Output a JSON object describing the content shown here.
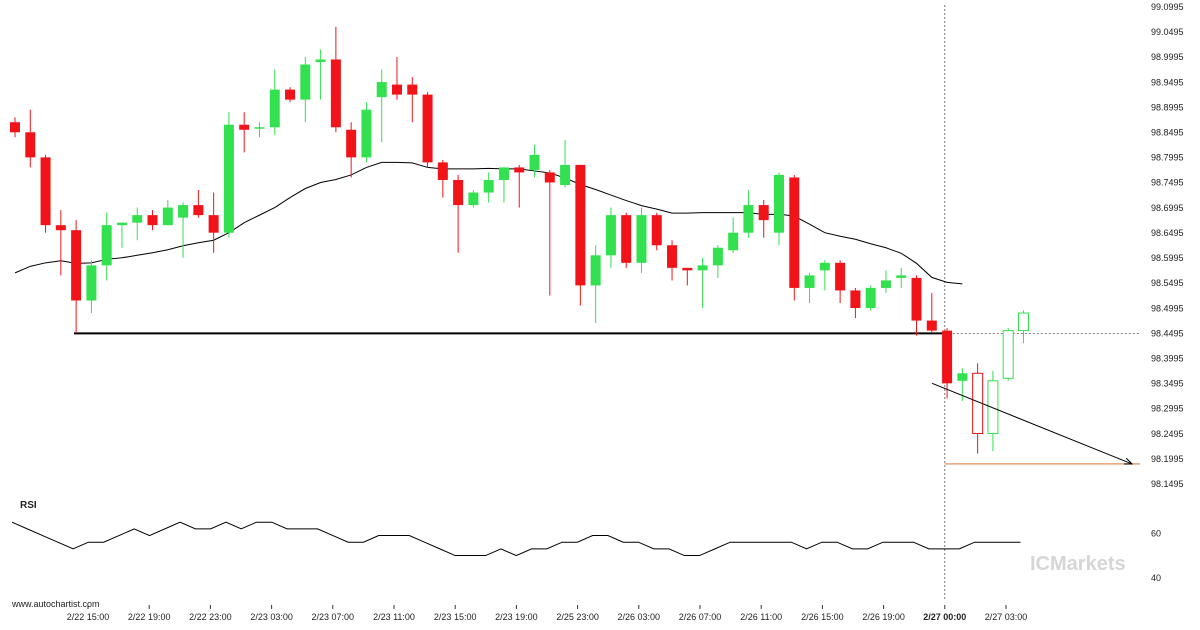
{
  "chart_data": [
    {
      "type": "candlestick",
      "title": "",
      "xlabel": "",
      "ylabel": "",
      "ylim": [
        98.1495,
        99.0995
      ],
      "y_ticks": [
        "99.0995",
        "99.0495",
        "98.9995",
        "98.9495",
        "98.8995",
        "98.8495",
        "98.7995",
        "98.7495",
        "98.6995",
        "98.6495",
        "98.5995",
        "98.5495",
        "98.4995",
        "98.4495",
        "98.3995",
        "98.3495",
        "98.2995",
        "98.2495",
        "98.1995",
        "98.1495"
      ],
      "x_ticks": [
        {
          "label": "2/22 15:00",
          "bold": false
        },
        {
          "label": "2/22 19:00",
          "bold": false
        },
        {
          "label": "2/22 23:00",
          "bold": false
        },
        {
          "label": "2/23 03:00",
          "bold": false
        },
        {
          "label": "2/23 07:00",
          "bold": false
        },
        {
          "label": "2/23 11:00",
          "bold": false
        },
        {
          "label": "2/23 15:00",
          "bold": false
        },
        {
          "label": "2/23 19:00",
          "bold": false
        },
        {
          "label": "2/25 23:00",
          "bold": false
        },
        {
          "label": "2/26 03:00",
          "bold": false
        },
        {
          "label": "2/26 07:00",
          "bold": false
        },
        {
          "label": "2/26 11:00",
          "bold": false
        },
        {
          "label": "2/26 15:00",
          "bold": false
        },
        {
          "label": "2/26 19:00",
          "bold": false
        },
        {
          "label": "2/27 00:00",
          "bold": true
        },
        {
          "label": "2/27 03:00",
          "bold": false
        }
      ],
      "support_level": 98.4495,
      "target_level": 98.1895,
      "candles": [
        {
          "o": 98.87,
          "c": 98.85,
          "h": 98.88,
          "l": 98.84
        },
        {
          "o": 98.85,
          "c": 98.8,
          "h": 98.895,
          "l": 98.78
        },
        {
          "o": 98.8,
          "c": 98.665,
          "h": 98.805,
          "l": 98.65
        },
        {
          "o": 98.665,
          "c": 98.655,
          "h": 98.695,
          "l": 98.565
        },
        {
          "o": 98.655,
          "c": 98.515,
          "h": 98.675,
          "l": 98.45
        },
        {
          "o": 98.515,
          "c": 98.585,
          "h": 98.595,
          "l": 98.49
        },
        {
          "o": 98.585,
          "c": 98.665,
          "h": 98.69,
          "l": 98.555
        },
        {
          "o": 98.665,
          "c": 98.67,
          "h": 98.67,
          "l": 98.62
        },
        {
          "o": 98.67,
          "c": 98.685,
          "h": 98.7,
          "l": 98.635
        },
        {
          "o": 98.685,
          "c": 98.665,
          "h": 98.695,
          "l": 98.655
        },
        {
          "o": 98.665,
          "c": 98.7,
          "h": 98.715,
          "l": 98.665
        },
        {
          "o": 98.68,
          "c": 98.705,
          "h": 98.71,
          "l": 98.6
        },
        {
          "o": 98.705,
          "c": 98.685,
          "h": 98.735,
          "l": 98.68
        },
        {
          "o": 98.685,
          "c": 98.65,
          "h": 98.73,
          "l": 98.61
        },
        {
          "o": 98.65,
          "c": 98.865,
          "h": 98.89,
          "l": 98.64
        },
        {
          "o": 98.865,
          "c": 98.855,
          "h": 98.89,
          "l": 98.81
        },
        {
          "o": 98.86,
          "c": 98.86,
          "h": 98.87,
          "l": 98.84
        },
        {
          "o": 98.86,
          "c": 98.935,
          "h": 98.975,
          "l": 98.845
        },
        {
          "o": 98.935,
          "c": 98.915,
          "h": 98.94,
          "l": 98.91
        },
        {
          "o": 98.915,
          "c": 98.985,
          "h": 99.0,
          "l": 98.87
        },
        {
          "o": 98.99,
          "c": 98.995,
          "h": 99.015,
          "l": 98.915
        },
        {
          "o": 98.995,
          "c": 98.86,
          "h": 99.06,
          "l": 98.85
        },
        {
          "o": 98.855,
          "c": 98.8,
          "h": 98.87,
          "l": 98.76
        },
        {
          "o": 98.8,
          "c": 98.895,
          "h": 98.91,
          "l": 98.79
        },
        {
          "o": 98.92,
          "c": 98.95,
          "h": 98.975,
          "l": 98.83
        },
        {
          "o": 98.945,
          "c": 98.925,
          "h": 99.0,
          "l": 98.915
        },
        {
          "o": 98.945,
          "c": 98.925,
          "h": 98.96,
          "l": 98.87
        },
        {
          "o": 98.925,
          "c": 98.79,
          "h": 98.93,
          "l": 98.78
        },
        {
          "o": 98.79,
          "c": 98.755,
          "h": 98.795,
          "l": 98.72
        },
        {
          "o": 98.755,
          "c": 98.705,
          "h": 98.765,
          "l": 98.61
        },
        {
          "o": 98.705,
          "c": 98.73,
          "h": 98.735,
          "l": 98.7
        },
        {
          "o": 98.73,
          "c": 98.755,
          "h": 98.77,
          "l": 98.71
        },
        {
          "o": 98.755,
          "c": 98.78,
          "h": 98.78,
          "l": 98.71
        },
        {
          "o": 98.78,
          "c": 98.77,
          "h": 98.785,
          "l": 98.7
        },
        {
          "o": 98.775,
          "c": 98.805,
          "h": 98.825,
          "l": 98.76
        },
        {
          "o": 98.77,
          "c": 98.75,
          "h": 98.775,
          "l": 98.525
        },
        {
          "o": 98.745,
          "c": 98.785,
          "h": 98.835,
          "l": 98.74
        },
        {
          "o": 98.785,
          "c": 98.545,
          "h": 98.785,
          "l": 98.505
        },
        {
          "o": 98.545,
          "c": 98.605,
          "h": 98.625,
          "l": 98.47
        },
        {
          "o": 98.605,
          "c": 98.685,
          "h": 98.7,
          "l": 98.58
        },
        {
          "o": 98.685,
          "c": 98.59,
          "h": 98.69,
          "l": 98.58
        },
        {
          "o": 98.59,
          "c": 98.685,
          "h": 98.7,
          "l": 98.57
        },
        {
          "o": 98.685,
          "c": 98.625,
          "h": 98.69,
          "l": 98.615
        },
        {
          "o": 98.625,
          "c": 98.58,
          "h": 98.635,
          "l": 98.555
        },
        {
          "o": 98.58,
          "c": 98.575,
          "h": 98.58,
          "l": 98.545
        },
        {
          "o": 98.575,
          "c": 98.585,
          "h": 98.6,
          "l": 98.5
        },
        {
          "o": 98.585,
          "c": 98.62,
          "h": 98.625,
          "l": 98.56
        },
        {
          "o": 98.615,
          "c": 98.65,
          "h": 98.68,
          "l": 98.61
        },
        {
          "o": 98.65,
          "c": 98.705,
          "h": 98.735,
          "l": 98.64
        },
        {
          "o": 98.705,
          "c": 98.675,
          "h": 98.715,
          "l": 98.64
        },
        {
          "o": 98.65,
          "c": 98.765,
          "h": 98.77,
          "l": 98.625
        },
        {
          "o": 98.76,
          "c": 98.54,
          "h": 98.765,
          "l": 98.515
        },
        {
          "o": 98.54,
          "c": 98.565,
          "h": 98.57,
          "l": 98.51
        },
        {
          "o": 98.575,
          "c": 98.59,
          "h": 98.595,
          "l": 98.535
        },
        {
          "o": 98.59,
          "c": 98.535,
          "h": 98.595,
          "l": 98.51
        },
        {
          "o": 98.535,
          "c": 98.5,
          "h": 98.54,
          "l": 98.48
        },
        {
          "o": 98.5,
          "c": 98.54,
          "h": 98.545,
          "l": 98.495
        },
        {
          "o": 98.54,
          "c": 98.555,
          "h": 98.575,
          "l": 98.53
        },
        {
          "o": 98.56,
          "c": 98.565,
          "h": 98.58,
          "l": 98.54
        },
        {
          "o": 98.56,
          "c": 98.475,
          "h": 98.565,
          "l": 98.445
        },
        {
          "o": 98.475,
          "c": 98.455,
          "h": 98.53,
          "l": 98.45
        },
        {
          "o": 98.455,
          "c": 98.35,
          "h": 98.46,
          "l": 98.32
        },
        {
          "o": 98.355,
          "c": 98.37,
          "h": 98.38,
          "l": 98.315
        },
        {
          "o": 98.37,
          "c": 98.25,
          "h": 98.39,
          "l": 98.21
        },
        {
          "o": 98.25,
          "c": 98.355,
          "h": 98.375,
          "l": 98.215
        },
        {
          "o": 98.36,
          "c": 98.455,
          "h": 98.46,
          "l": 98.355
        },
        {
          "o": 98.455,
          "c": 98.49,
          "h": 98.495,
          "l": 98.43
        }
      ],
      "moving_average": [
        98.57,
        98.583,
        98.59,
        98.594,
        98.589,
        98.59,
        98.597,
        98.6,
        98.605,
        98.61,
        98.616,
        98.624,
        98.63,
        98.635,
        98.65,
        98.67,
        98.685,
        98.7,
        98.72,
        98.738,
        98.75,
        98.756,
        98.765,
        98.78,
        98.79,
        98.79,
        98.789,
        98.78,
        98.777,
        98.777,
        98.777,
        98.778,
        98.777,
        98.777,
        98.773,
        98.769,
        98.759,
        98.746,
        98.736,
        98.725,
        98.714,
        98.704,
        98.697,
        98.689,
        98.689,
        98.69,
        98.69,
        98.69,
        98.69,
        98.686,
        98.687,
        98.683,
        98.667,
        98.65,
        98.643,
        98.637,
        98.628,
        98.62,
        98.609,
        98.589,
        98.561,
        98.551,
        98.548
      ],
      "forecast_arrow": {
        "from_index": 61,
        "from_value": 98.35,
        "to_value": 98.1895
      },
      "rsi": {
        "label": "RSI",
        "ticks": [
          "60",
          "40"
        ],
        "ylim": [
          30,
          75
        ],
        "values": [
          65,
          62,
          59,
          56,
          53,
          56,
          56,
          59,
          62,
          59,
          62,
          65,
          62,
          62,
          65,
          62,
          65,
          65,
          62,
          62,
          62,
          59,
          56,
          56,
          59,
          59,
          59,
          56,
          53,
          50,
          50,
          50,
          53,
          50,
          53,
          53,
          56,
          56,
          59,
          59,
          56,
          56,
          53,
          53,
          50,
          50,
          53,
          56,
          56,
          56,
          56,
          56,
          53,
          56,
          56,
          53,
          53,
          56,
          56,
          56,
          53,
          53,
          53,
          56,
          56,
          56,
          56
        ]
      }
    }
  ],
  "watermark": "ICMarkets",
  "source": "www.autochartist.com",
  "colors": {
    "up": "#33e04f",
    "down": "#f0141a",
    "line": "#000000",
    "target": "#e8a070",
    "grid_dash": "#555555"
  }
}
